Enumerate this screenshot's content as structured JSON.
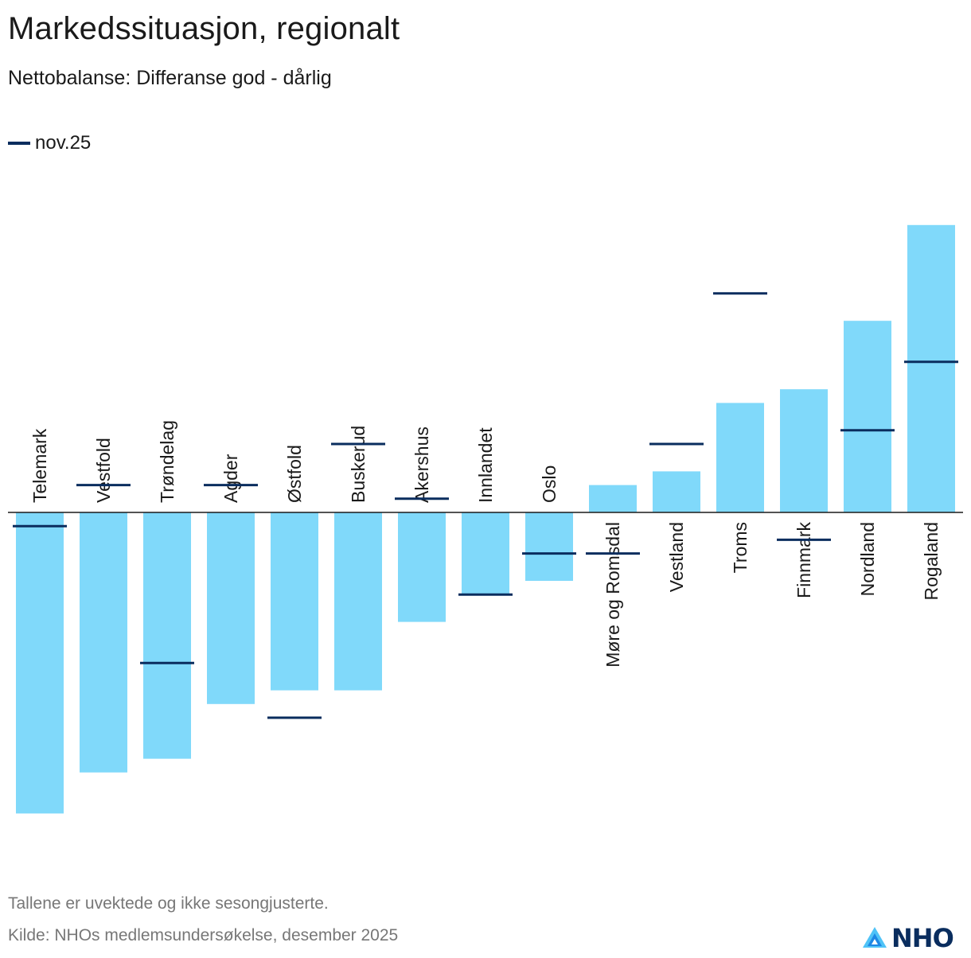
{
  "title": "Markedssituasjon, regionalt",
  "subtitle": "Nettobalanse: Differanse god - dårlig",
  "legend": {
    "marker_label": "nov.25"
  },
  "footer": {
    "note": "Tallene er uvektede og ikke sesongjusterte.",
    "source": "Kilde: NHOs medlemsundersøkelse, desember 2025",
    "logo_text": "NHO"
  },
  "colors": {
    "bar": "#80d9fa",
    "marker": "#0a2d5e",
    "axis": "#1a1a1a",
    "logo": "#0a2d5e"
  },
  "chart_data": {
    "type": "bar",
    "categories": [
      "Telemark",
      "Vestfold",
      "Trøndelag",
      "Agder",
      "Østfold",
      "Buskerud",
      "Akershus",
      "Innlandet",
      "Oslo",
      "Møre og Romsdal",
      "Vestland",
      "Troms",
      "Finnmark",
      "Nordland",
      "Rogaland"
    ],
    "series": [
      {
        "values": [
          -44,
          -38,
          -36,
          -28,
          -26,
          -26,
          -16,
          -12,
          -10,
          4,
          6,
          16,
          18,
          28,
          42
        ]
      },
      {
        "name": "nov.25",
        "values": [
          -2,
          4,
          -22,
          4,
          -30,
          10,
          2,
          -12,
          -6,
          -6,
          10,
          32,
          -4,
          12,
          22
        ]
      }
    ],
    "ylim": [
      -52,
      48
    ],
    "legend_position": "top-left",
    "grid": false
  }
}
